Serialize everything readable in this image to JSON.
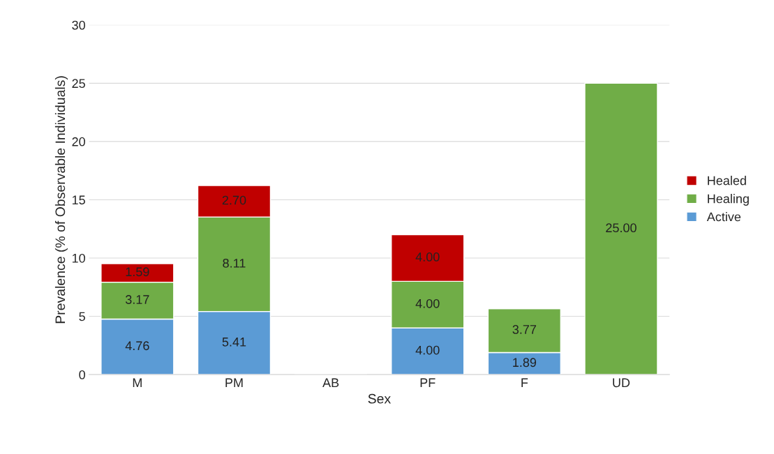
{
  "chart_data": {
    "type": "bar",
    "stacked": true,
    "xlabel": "Sex",
    "ylabel": "Prevalence (% of Observable Individuals)",
    "categories": [
      "M",
      "PM",
      "AB",
      "PF",
      "F",
      "UD"
    ],
    "series": [
      {
        "name": "Active",
        "color": "#5b9bd5",
        "values": [
          4.76,
          5.41,
          null,
          4.0,
          1.89,
          null
        ],
        "value_labels": [
          "4.76",
          "5.41",
          null,
          "4.00",
          "1.89",
          null
        ]
      },
      {
        "name": "Healing",
        "color": "#70ad47",
        "values": [
          3.17,
          8.11,
          null,
          4.0,
          3.77,
          25.0
        ],
        "value_labels": [
          "3.17",
          "8.11",
          null,
          "4.00",
          "3.77",
          "25.00"
        ]
      },
      {
        "name": "Healed",
        "color": "#c00000",
        "values": [
          1.59,
          2.7,
          null,
          4.0,
          null,
          null
        ],
        "value_labels": [
          "1.59",
          "2.70",
          null,
          "4.00",
          null,
          null
        ]
      }
    ],
    "ylim": [
      0,
      30
    ],
    "yticks": [
      0,
      5,
      10,
      15,
      20,
      25,
      30
    ],
    "grid": "y",
    "legend": "right"
  }
}
